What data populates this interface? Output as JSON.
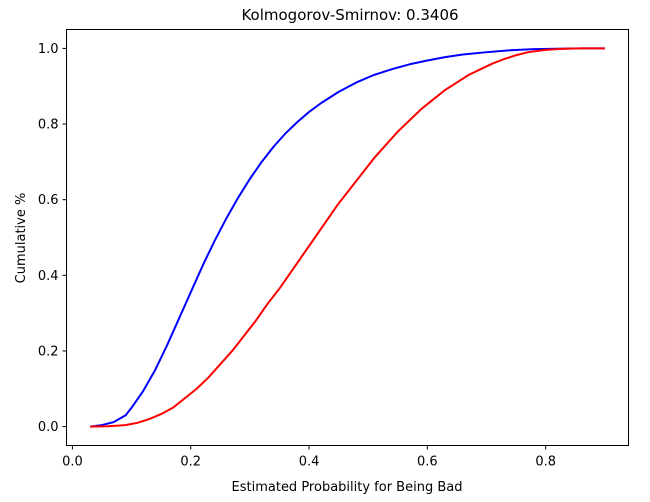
{
  "chart_data": {
    "type": "line",
    "title": "Kolmogorov-Smirnov:  0.3406",
    "xlabel": "Estimated Probability for Being Bad",
    "ylabel": "Cumulative %",
    "xlim": [
      -0.01,
      0.94
    ],
    "ylim": [
      -0.05,
      1.05
    ],
    "xticks": [
      0.0,
      0.2,
      0.4,
      0.6,
      0.8
    ],
    "xtick_labels": [
      "0.0",
      "0.2",
      "0.4",
      "0.6",
      "0.8"
    ],
    "yticks": [
      0.0,
      0.2,
      0.4,
      0.6,
      0.8,
      1.0
    ],
    "ytick_labels": [
      "0.0",
      "0.2",
      "0.4",
      "0.6",
      "0.8",
      "1.0"
    ],
    "grid": false,
    "series": [
      {
        "color": "#0000ff",
        "x": [
          0.03,
          0.05,
          0.07,
          0.09,
          0.1,
          0.12,
          0.14,
          0.16,
          0.18,
          0.2,
          0.22,
          0.24,
          0.26,
          0.28,
          0.3,
          0.32,
          0.34,
          0.36,
          0.38,
          0.4,
          0.42,
          0.45,
          0.48,
          0.51,
          0.54,
          0.57,
          0.6,
          0.63,
          0.66,
          0.7,
          0.74,
          0.78,
          0.82,
          0.86,
          0.9
        ],
        "y": [
          0.0,
          0.004,
          0.012,
          0.03,
          0.05,
          0.095,
          0.15,
          0.215,
          0.285,
          0.355,
          0.425,
          0.49,
          0.55,
          0.605,
          0.655,
          0.7,
          0.74,
          0.775,
          0.805,
          0.832,
          0.855,
          0.885,
          0.91,
          0.93,
          0.945,
          0.958,
          0.968,
          0.977,
          0.984,
          0.99,
          0.995,
          0.998,
          0.999,
          1.0,
          1.0
        ]
      },
      {
        "color": "#ff0000",
        "x": [
          0.03,
          0.06,
          0.09,
          0.11,
          0.13,
          0.15,
          0.17,
          0.19,
          0.21,
          0.23,
          0.25,
          0.27,
          0.29,
          0.31,
          0.33,
          0.35,
          0.37,
          0.39,
          0.41,
          0.43,
          0.45,
          0.47,
          0.49,
          0.51,
          0.53,
          0.55,
          0.57,
          0.59,
          0.61,
          0.63,
          0.65,
          0.67,
          0.69,
          0.71,
          0.73,
          0.75,
          0.77,
          0.8,
          0.83,
          0.86,
          0.9
        ],
        "y": [
          0.0,
          0.001,
          0.004,
          0.01,
          0.02,
          0.033,
          0.05,
          0.075,
          0.1,
          0.13,
          0.165,
          0.2,
          0.24,
          0.28,
          0.325,
          0.365,
          0.41,
          0.455,
          0.5,
          0.545,
          0.59,
          0.63,
          0.67,
          0.71,
          0.745,
          0.78,
          0.81,
          0.84,
          0.865,
          0.89,
          0.91,
          0.93,
          0.945,
          0.96,
          0.972,
          0.982,
          0.99,
          0.996,
          0.999,
          1.0,
          1.0
        ]
      }
    ]
  }
}
